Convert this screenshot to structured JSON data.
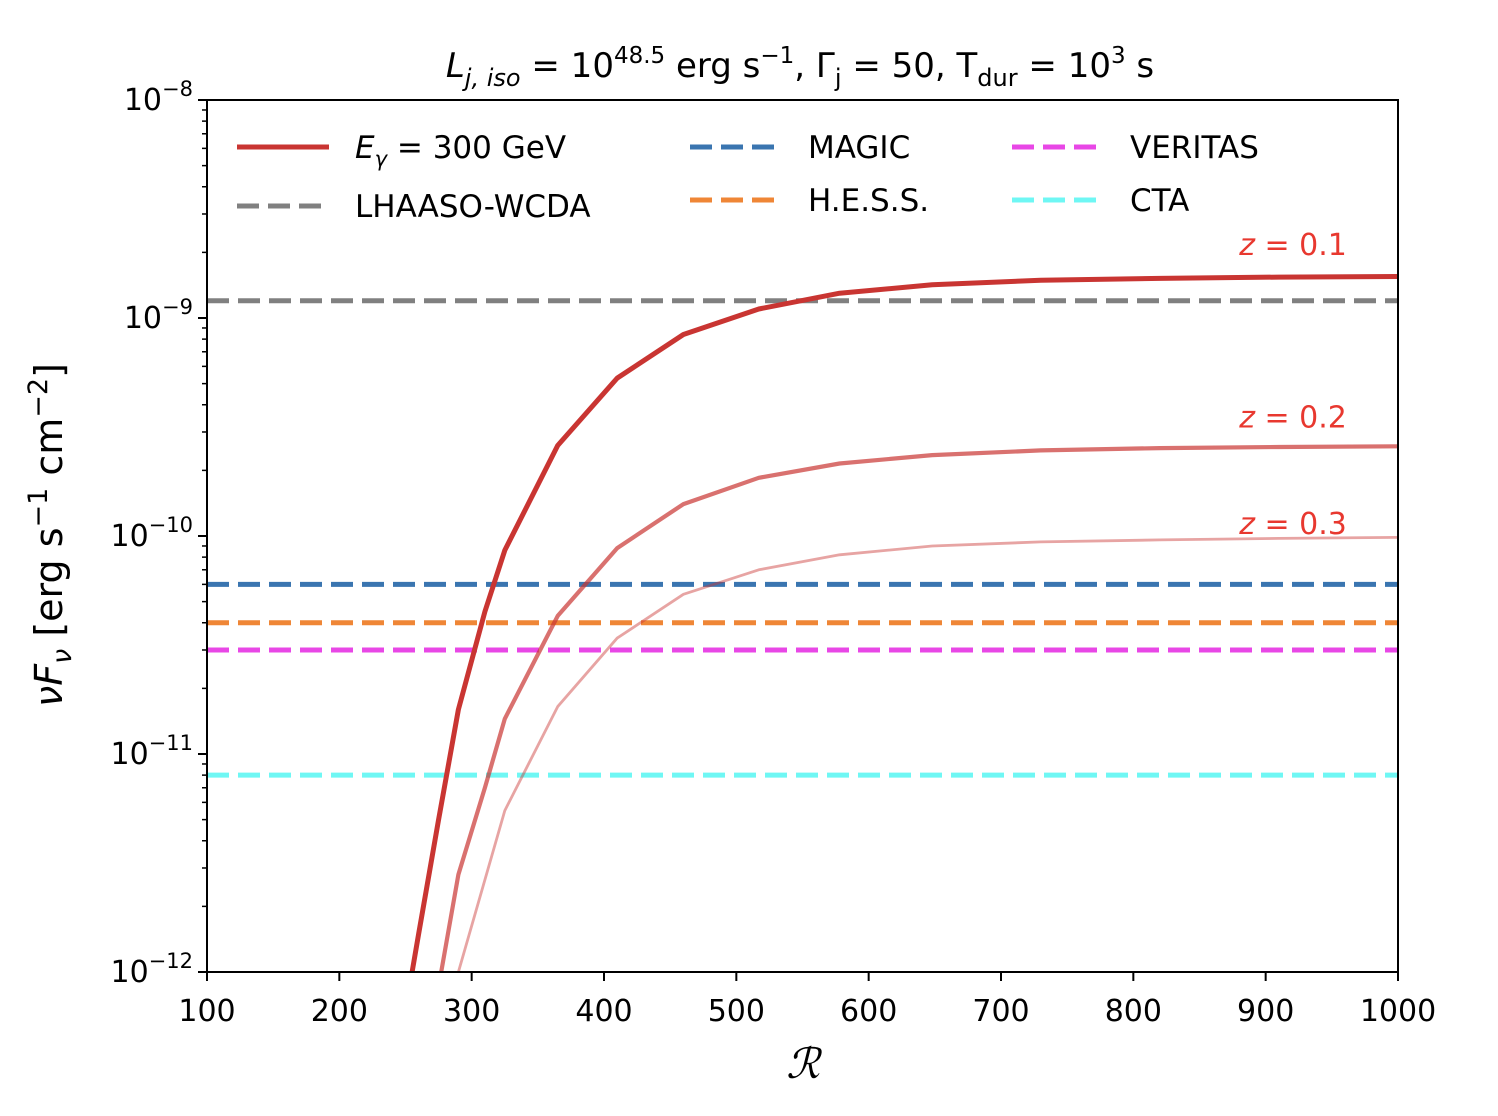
{
  "chart_data": {
    "type": "line",
    "title": "L_{j, iso} = 10^{48.5} erg s^{-1},  Γ_j = 50,  T_dur = 10^3 s",
    "title_parts": {
      "l": "L",
      "l_sub": "j, iso",
      "eq1": " = 10",
      "l_exp": "48.5",
      "erg": " erg s",
      "erg_exp": "−1",
      "sep1": ",  Γ",
      "g_sub": "j",
      "eq2": " = 50,  T",
      "t_sub": "dur",
      "eq3": " = 10",
      "t_exp": "3",
      "s": " s"
    },
    "xlabel": "ℛ",
    "ylabel": "νF_ν [erg s^{-1} cm^{-2}]",
    "ylabel_parts": {
      "nu": "ν",
      "f": "F",
      "f_sub": "ν",
      "unit": " [erg s",
      "exp1": "−1",
      "cm": " cm",
      "exp2": "−2",
      "close": "]"
    },
    "xlim": [
      100,
      1000
    ],
    "ylim": [
      1e-12,
      1e-08
    ],
    "yscale": "log",
    "grid": false,
    "legend_position": "top",
    "x_ticks": [
      "100",
      "200",
      "300",
      "400",
      "500",
      "600",
      "700",
      "800",
      "900",
      "1000"
    ],
    "x_tick_values": [
      100,
      200,
      300,
      400,
      500,
      600,
      700,
      800,
      900,
      1000
    ],
    "y_ticks": [
      {
        "value": 1e-08,
        "base": "10",
        "exp": "−8"
      },
      {
        "value": 1e-09,
        "base": "10",
        "exp": "−9"
      },
      {
        "value": 1e-10,
        "base": "10",
        "exp": "−10"
      },
      {
        "value": 1e-11,
        "base": "10",
        "exp": "−11"
      },
      {
        "value": 1e-12,
        "base": "10",
        "exp": "−12"
      }
    ],
    "series": [
      {
        "name": "E_γ = 300 GeV",
        "legend": {
          "sym": "E",
          "sub": "γ",
          "rest": " = 300 GeV"
        },
        "annotation": "z = 0.1",
        "color": "#c93532",
        "opacity": 1.0,
        "x": [
          255,
          260,
          275,
          290,
          310,
          325,
          365,
          410,
          460,
          517,
          578,
          648,
          730,
          820,
          910,
          1000
        ],
        "y": [
          1e-12,
          1.5e-12,
          5e-12,
          1.6e-11,
          4.5e-11,
          8.6e-11,
          2.6e-10,
          5.3e-10,
          8.4e-10,
          1.1e-09,
          1.3e-09,
          1.42e-09,
          1.49e-09,
          1.52e-09,
          1.54e-09,
          1.55e-09
        ]
      },
      {
        "name": "z = 0.2",
        "annotation": "z = 0.2",
        "color": "#c93532",
        "opacity": 0.7,
        "x": [
          277,
          290,
          310,
          325,
          365,
          410,
          460,
          517,
          578,
          648,
          730,
          820,
          910,
          1000
        ],
        "y": [
          1e-12,
          2.8e-12,
          7e-12,
          1.45e-11,
          4.3e-11,
          8.8e-11,
          1.4e-10,
          1.85e-10,
          2.15e-10,
          2.35e-10,
          2.47e-10,
          2.53e-10,
          2.56e-10,
          2.58e-10
        ]
      },
      {
        "name": "z = 0.3",
        "annotation": "z = 0.3",
        "color": "#c93532",
        "opacity": 0.45,
        "x": [
          290,
          325,
          365,
          410,
          460,
          517,
          578,
          648,
          730,
          820,
          910,
          1000
        ],
        "y": [
          1e-12,
          5.5e-12,
          1.65e-11,
          3.4e-11,
          5.4e-11,
          7e-11,
          8.2e-11,
          9e-11,
          9.4e-11,
          9.6e-11,
          9.75e-11,
          9.85e-11
        ]
      }
    ],
    "sensitivity_lines": [
      {
        "name": "LHAASO-WCDA",
        "value": 1.2e-09,
        "color": "#808080"
      },
      {
        "name": "MAGIC",
        "value": 6e-11,
        "color": "#3a75b0"
      },
      {
        "name": "H.E.S.S.",
        "value": 4e-11,
        "color": "#ef8636"
      },
      {
        "name": "VERITAS",
        "value": 3e-11,
        "color": "#e847e6"
      },
      {
        "name": "CTA",
        "value": 8e-12,
        "color": "#6ff7f4"
      }
    ],
    "annotations": [
      {
        "text": "z = 0.1",
        "z": "z",
        "rest": " = 0.1",
        "x": 880,
        "y": 1.95e-09,
        "color": "#e8382f"
      },
      {
        "text": "z = 0.2",
        "z": "z",
        "rest": " = 0.2",
        "x": 880,
        "y": 3.15e-10,
        "color": "#e8382f"
      },
      {
        "text": "z = 0.3",
        "z": "z",
        "rest": " = 0.3",
        "x": 880,
        "y": 1.02e-10,
        "color": "#e8382f"
      }
    ]
  }
}
